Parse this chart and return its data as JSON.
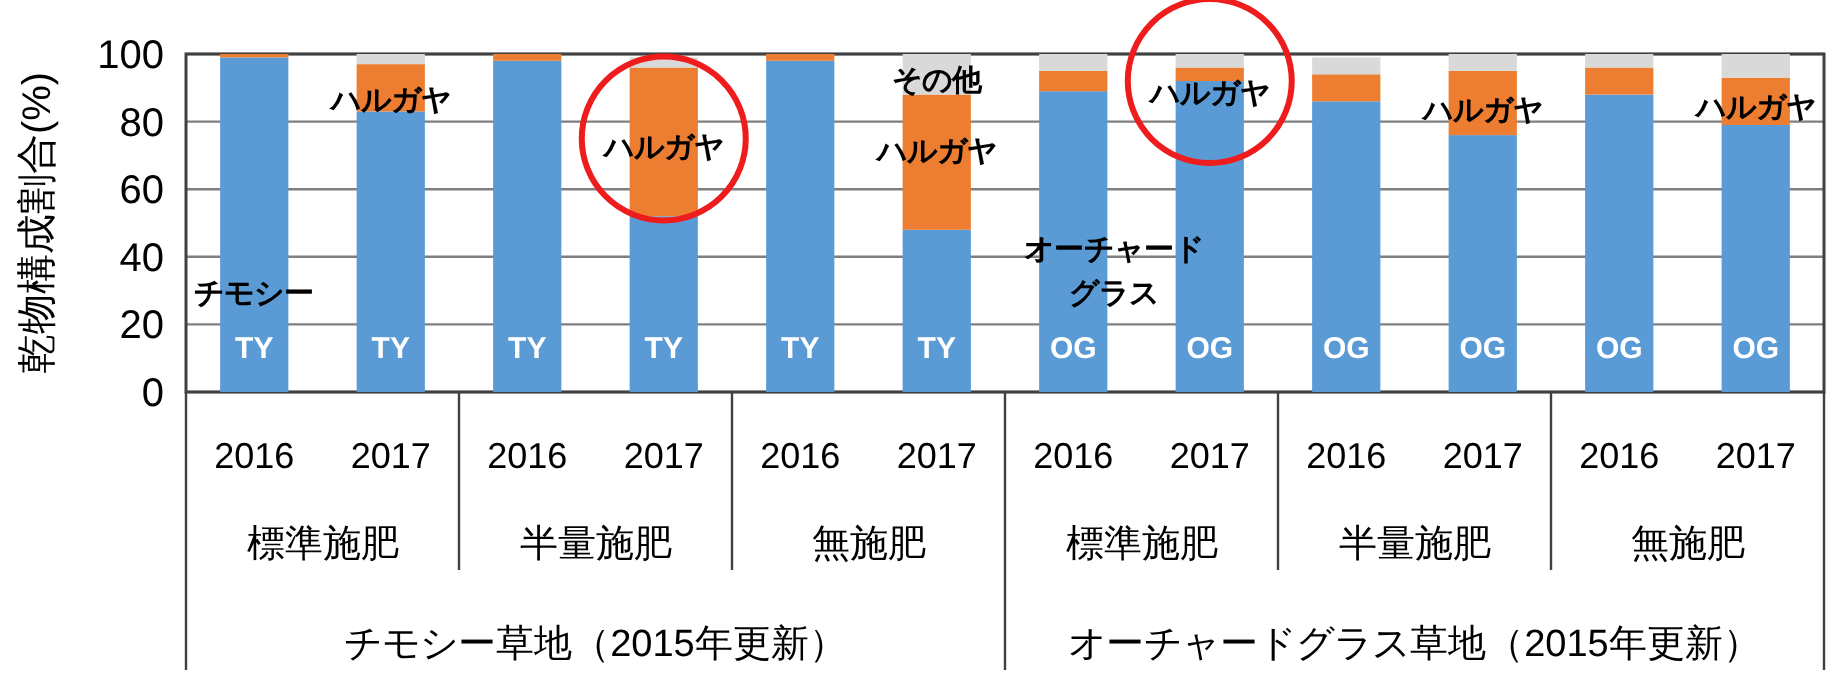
{
  "chart_data": {
    "type": "bar",
    "stacked": true,
    "ylabel": "乾物構成割合(%)",
    "categories": [
      "2016",
      "2017",
      "2016",
      "2017",
      "2016",
      "2017",
      "2016",
      "2017",
      "2016",
      "2017",
      "2016",
      "2017"
    ],
    "series": [
      {
        "color": "#5b9bd5",
        "values": [
          99,
          83,
          98,
          52,
          98,
          48,
          89,
          92,
          86,
          76,
          88,
          79
        ],
        "value_labels": [
          "TY",
          "TY",
          "TY",
          "TY",
          "TY",
          "TY",
          "OG",
          "OG",
          "OG",
          "OG",
          "OG",
          "OG"
        ]
      },
      {
        "color": "#ed7d31",
        "values": [
          1,
          14,
          2,
          44,
          2,
          40,
          6,
          4,
          8,
          19,
          8,
          14
        ]
      },
      {
        "color": "#d9d9d9",
        "values": [
          0,
          3,
          0,
          3,
          0,
          12,
          5,
          4,
          5,
          5,
          4,
          7
        ]
      }
    ],
    "ylim": [
      0,
      100
    ],
    "yticks": [
      0,
      20,
      40,
      60,
      80,
      100
    ],
    "grid": "y",
    "annotations": [
      "チモシー",
      "ハルガヤ",
      "ハルガヤ",
      "その他",
      "ハルガヤ",
      "オーチャード",
      "グラス",
      "ハルガヤ",
      "ハルガヤ",
      "ハルガヤ",
      "標準施肥",
      "半量施肥",
      "無施肥",
      "標準施肥",
      "半量施肥",
      "無施肥",
      "チモシー草地（2015年更新）",
      "オーチャードグラス草地（2015年更新）"
    ]
  }
}
